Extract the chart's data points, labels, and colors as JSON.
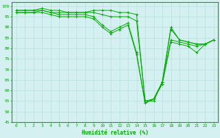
{
  "xlabel": "Humidité relative (%)",
  "background_color": "#d4f0f0",
  "grid_color": "#b8dede",
  "line_color": "#00aa00",
  "xlim_min": -0.5,
  "xlim_max": 23.5,
  "ylim_min": 45,
  "ylim_max": 102,
  "yticks": [
    45,
    50,
    55,
    60,
    65,
    70,
    75,
    80,
    85,
    90,
    95,
    100
  ],
  "xticks": [
    0,
    1,
    2,
    3,
    4,
    5,
    6,
    7,
    8,
    9,
    10,
    11,
    12,
    13,
    14,
    15,
    16,
    17,
    18,
    19,
    20,
    21,
    22,
    23
  ],
  "series": [
    [
      98,
      98,
      98,
      99,
      98,
      98,
      97,
      97,
      97,
      98,
      98,
      98,
      97,
      97,
      96,
      55,
      56,
      64,
      90,
      84,
      83,
      82,
      82,
      84
    ],
    [
      98,
      98,
      98,
      98,
      97,
      97,
      97,
      97,
      97,
      97,
      96,
      95,
      95,
      95,
      93,
      55,
      55,
      64,
      89,
      84,
      83,
      82,
      82,
      84
    ],
    [
      97,
      97,
      97,
      98,
      97,
      96,
      96,
      96,
      96,
      95,
      91,
      88,
      90,
      92,
      78,
      54,
      56,
      64,
      84,
      83,
      82,
      81,
      82,
      84
    ],
    [
      97,
      97,
      97,
      97,
      96,
      95,
      95,
      95,
      95,
      94,
      90,
      87,
      89,
      91,
      77,
      54,
      56,
      63,
      83,
      82,
      81,
      78,
      82,
      84
    ]
  ]
}
